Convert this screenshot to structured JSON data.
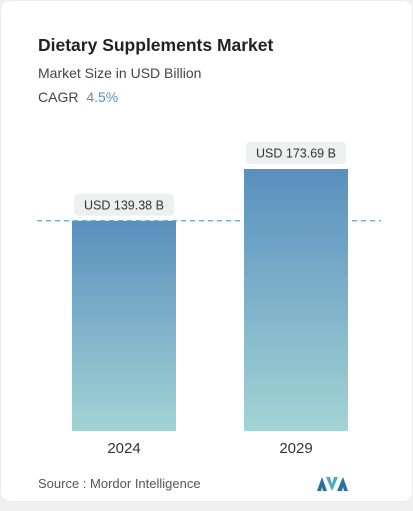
{
  "header": {
    "title": "Dietary Supplements Market",
    "subtitle": "Market Size in USD Billion",
    "cagr_label": "CAGR",
    "cagr_value": "4.5%"
  },
  "footer": {
    "source": "Source :  Mordor Intelligence"
  },
  "colors": {
    "bar_top": "#5a8fbe",
    "bar_bottom": "#a2d4d4",
    "cagr_value": "#5a8fbe",
    "label_bg": "#eef0f0",
    "reference_line": "#5aa8c2",
    "logo": "#2c6e9e"
  },
  "chart_data": {
    "type": "bar",
    "categories": [
      "2024",
      "2029"
    ],
    "values": [
      139.38,
      173.69
    ],
    "data_labels": [
      "USD 139.38 B",
      "USD 173.69 B"
    ],
    "ylim": [
      0,
      173.69
    ],
    "grid": false,
    "reference_line_value": 139.38
  }
}
